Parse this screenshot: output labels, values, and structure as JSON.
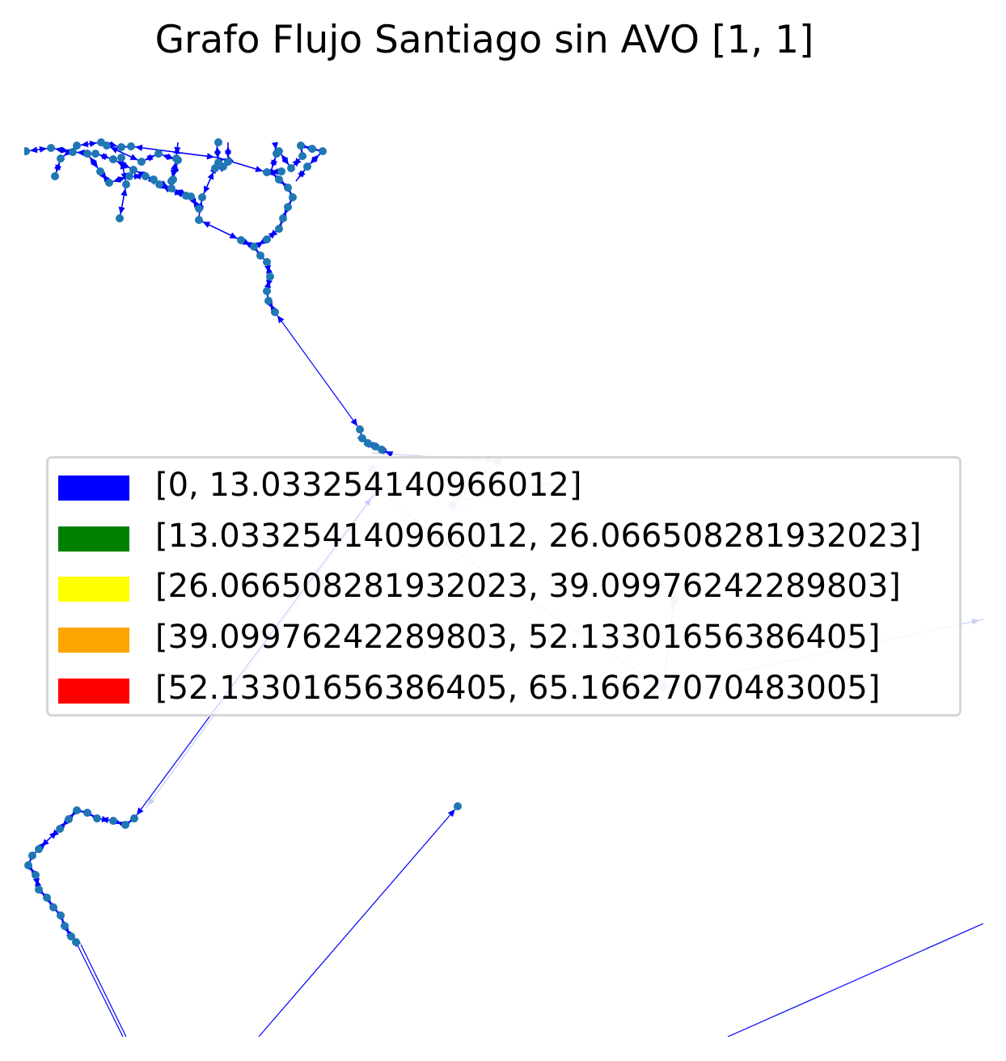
{
  "title": "Grafo Flujo Santiago sin AVO [1, 1]",
  "colors": {
    "edge": "#0000ff",
    "faded_edge": "#c9d0f2",
    "node": "#1f77b4"
  },
  "legend": {
    "items": [
      {
        "label": "[0, 13.033254140966012]",
        "color": "#0000ff"
      },
      {
        "label": "[13.033254140966012, 26.066508281932023]",
        "color": "#008000"
      },
      {
        "label": "[26.066508281932023, 39.09976242289803]",
        "color": "#ffff00"
      },
      {
        "label": "[39.09976242289803, 52.13301656386405]",
        "color": "#ffa500"
      },
      {
        "label": "[52.13301656386405, 65.16627070483005]",
        "color": "#ff0000"
      }
    ]
  }
}
